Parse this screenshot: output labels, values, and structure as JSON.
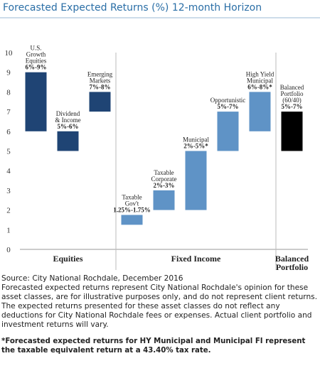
{
  "chart_data": {
    "type": "floating_bar",
    "title": "Forecasted Expected Returns (%) 12-month Horizon",
    "ylim": [
      0,
      10
    ],
    "yticks": [
      0,
      1,
      2,
      3,
      4,
      5,
      6,
      7,
      8,
      9,
      10
    ],
    "series": [
      {
        "name": "Equities",
        "color": "#1f4474",
        "categories": [
          [
            "U.S.",
            "Growth",
            "Equities"
          ],
          [
            "Dividend",
            "& Income"
          ],
          [
            "Emerging",
            "Markets"
          ]
        ],
        "low": [
          6,
          5,
          7
        ],
        "high": [
          9,
          6,
          8
        ],
        "value_labels": [
          "6%-9%",
          "5%-6%",
          "7%-8%"
        ]
      },
      {
        "name": "Fixed Income",
        "color": "#5f93c6",
        "categories": [
          [
            "Taxable",
            "Gov't"
          ],
          [
            "Taxable",
            "Corporate"
          ],
          [
            "Municipal"
          ],
          [
            "Opportunistic"
          ],
          [
            "High Yield",
            "Municipal"
          ]
        ],
        "low": [
          1.25,
          2,
          2,
          5,
          6
        ],
        "high": [
          1.75,
          3,
          5,
          7,
          8
        ],
        "value_labels": [
          "1.25%-1.75%",
          "2%-3%",
          "2%-5%*",
          "5%-7%",
          "6%-8%*"
        ]
      },
      {
        "name": "Balanced Portfolio",
        "color": "#000000",
        "categories": [
          [
            "Balanced",
            "Portfolio",
            "(60/40)"
          ]
        ],
        "low": [
          5
        ],
        "high": [
          7
        ],
        "value_labels": [
          "5%-7%"
        ]
      }
    ],
    "source": "Source: City National Rochdale, December 2016",
    "note": "Forecasted expected returns represent City National Rochdale's opinion for these asset classes, are for illustrative purposes only, and do not represent client returns. The expected returns presented for these asset classes do not reflect any deductions for City National Rochdale fees or expenses. Actual client portfolio and investment returns will vary.",
    "footnote": "*Forecasted expected returns for HY Municipal and Municipal FI represent the taxable equivalent return at a 43.40% tax rate."
  }
}
